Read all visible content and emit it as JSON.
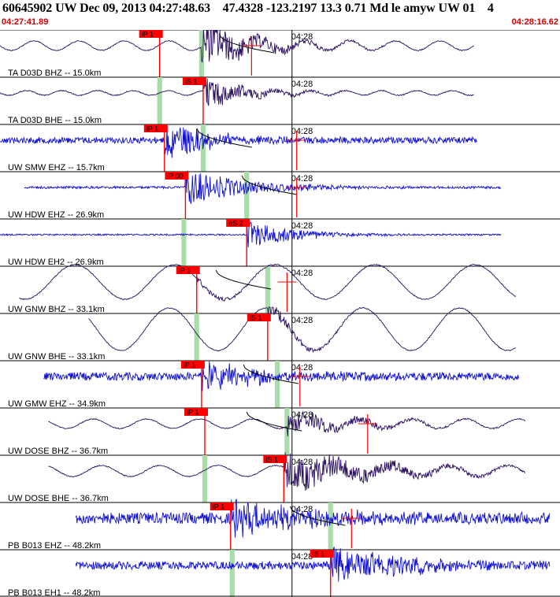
{
  "header": {
    "title": "60645902 UW Dec 09, 2013 04:27:48.63    47.4328 -123.2197 13.3 0.71 Md le amyw UW 01    4",
    "start_time": "04:27:41.89",
    "end_time": "04:28:16.62"
  },
  "chart_data": {
    "type": "line",
    "title": "60645902 UW Dec 09, 2013 04:27:48.63    47.4328 -123.2197 13.3 0.71 Md le amyw UW 01    4",
    "x_units": "seconds after 04:27:41.89",
    "xlim": [
      0,
      34.73
    ],
    "x_tick": {
      "label": "04:28",
      "value": 18.11
    },
    "grid": true,
    "colors": {
      "broadband": "#2b1060",
      "short_period": "#1010d0",
      "pick": "#ff0000",
      "pick_window": "#a8dca8",
      "grid": "#000000"
    },
    "traces": [
      {
        "label": "TA D03D BHZ -- 15.0km",
        "color": "#2b1060",
        "kind": "sine",
        "period": 2.8,
        "amp": 6,
        "start": 0,
        "end": 29.4,
        "pick": {
          "label": "iP 1",
          "t": 9.9
        },
        "band": {
          "t": 12.5,
          "width": 0.3
        },
        "burst": {
          "t": 12.5,
          "amp": 30,
          "decay": 3
        },
        "decay_curve": {
          "t": 13.6
        },
        "coda_mark": {
          "t": 15.6
        }
      },
      {
        "label": "TA D03D BHE -- 15.0km",
        "color": "#2b1060",
        "kind": "sine",
        "period": 2.2,
        "amp": 3,
        "start": 0,
        "end": 29.4,
        "pick": {
          "label": "iS 1",
          "t": 12.6
        },
        "band": {
          "t": 9.9,
          "width": 0.3
        },
        "burst": {
          "t": 12.6,
          "amp": 22,
          "decay": 2.5
        }
      },
      {
        "label": "UW SMW EHZ -- 15.7km",
        "color": "#1010d0",
        "kind": "noise",
        "amp": 4,
        "start": 0,
        "end": 29.6,
        "pick": {
          "label": "iP 1",
          "t": 10.2
        },
        "band": {
          "t": 12.6,
          "width": 0.3
        },
        "burst": {
          "t": 10.2,
          "amp": 24,
          "decay": 3
        },
        "decay_curve": {
          "t": 12.2
        },
        "coda_mark": {
          "t": 18.4
        }
      },
      {
        "label": "UW HDW EHZ -- 26.9km",
        "color": "#1010d0",
        "kind": "noise",
        "amp": 1.5,
        "start": 1.5,
        "end": 31.1,
        "pick": {
          "label": "iP 00",
          "t": 11.5
        },
        "band": {
          "t": 15.3,
          "width": 0.3
        },
        "burst": {
          "t": 11.5,
          "amp": 22,
          "decay": 4
        },
        "decay_curve": {
          "t": 15.0
        },
        "coda_mark": {
          "t": 18.4
        }
      },
      {
        "label": "UW HDW EH2 -- 26.9km",
        "color": "#1010d0",
        "kind": "noise",
        "amp": 1,
        "start": 0,
        "end": 31.1,
        "pick": {
          "label": "eS 2",
          "t": 15.3
        },
        "band": {
          "t": 11.4,
          "width": 0.3
        },
        "burst": {
          "t": 15.3,
          "amp": 18,
          "decay": 3
        }
      },
      {
        "label": "UW GNW BHZ -- 33.1km",
        "color": "#2b1060",
        "kind": "sine",
        "period": 6.2,
        "amp": 22,
        "start": 1.2,
        "end": 32.0,
        "pick": {
          "label": "iP 1",
          "t": 12.2
        },
        "band": {
          "t": 16.6,
          "width": 0.3
        },
        "burst": {
          "t": 12.2,
          "amp": 4,
          "decay": 3
        },
        "decay_curve": {
          "t": 13.4
        },
        "coda_mark": {
          "t": 17.8
        }
      },
      {
        "label": "UW GNW BHE -- 33.1km",
        "color": "#2b1060",
        "kind": "sine",
        "period": 6.0,
        "amp": 27,
        "start": 5.5,
        "end": 32.0,
        "pick": {
          "label": "iS 1",
          "t": 16.6
        },
        "band": {
          "t": 12.2,
          "width": 0.3
        },
        "burst": {
          "t": 16.6,
          "amp": 10,
          "decay": 2
        }
      },
      {
        "label": "UW GMW EHZ -- 34.9km",
        "color": "#1010d0",
        "kind": "noise",
        "amp": 5,
        "start": 2.7,
        "end": 32.2,
        "pick": {
          "label": "iP 1",
          "t": 12.5
        },
        "band": {
          "t": 17.2,
          "width": 0.3
        },
        "burst": {
          "t": 12.5,
          "amp": 20,
          "decay": 4
        },
        "decay_curve": {
          "t": 15.1
        },
        "coda_mark": {
          "t": 18.6
        }
      },
      {
        "label": "UW DOSE BHZ -- 36.7km",
        "color": "#2b1060",
        "kind": "sine",
        "period": 3.3,
        "amp": 6,
        "start": 3.0,
        "end": 32.6,
        "pick": {
          "label": "iP 1",
          "t": 12.7
        },
        "band": {
          "t": 17.8,
          "width": 0.3
        },
        "burst": {
          "t": 17.8,
          "amp": 14,
          "decay": 4
        },
        "decay_curve": {
          "t": 15.3
        },
        "coda_mark": {
          "t": 22.8
        }
      },
      {
        "label": "UW DOSE BHE -- 36.7km",
        "color": "#2b1060",
        "kind": "sine",
        "period": 3.6,
        "amp": 7,
        "start": 3.0,
        "end": 32.6,
        "pick": {
          "label": "iS 1",
          "t": 17.6
        },
        "band": {
          "t": 12.7,
          "width": 0.3
        },
        "burst": {
          "t": 17.6,
          "amp": 26,
          "decay": 5
        }
      },
      {
        "label": "PB B013 EHZ -- 48.2km",
        "color": "#1010d0",
        "kind": "noise",
        "amp": 7,
        "start": 4.7,
        "end": 34.1,
        "pick": {
          "label": "iP 1",
          "t": 14.3
        },
        "band": {
          "t": 20.5,
          "width": 0.3
        },
        "burst": {
          "t": 14.3,
          "amp": 22,
          "decay": 5
        },
        "decay_curve": {
          "t": 18.0
        },
        "coda_mark": {
          "t": 21.8
        }
      },
      {
        "label": "PB B013 EH1 -- 48.2km",
        "color": "#1010d0",
        "kind": "noise",
        "amp": 5,
        "start": 4.7,
        "end": 34.1,
        "pick": {
          "label": "iS 1",
          "t": 20.5
        },
        "band": {
          "t": 14.4,
          "width": 0.3
        },
        "burst": {
          "t": 20.5,
          "amp": 24,
          "decay": 5
        }
      }
    ]
  }
}
